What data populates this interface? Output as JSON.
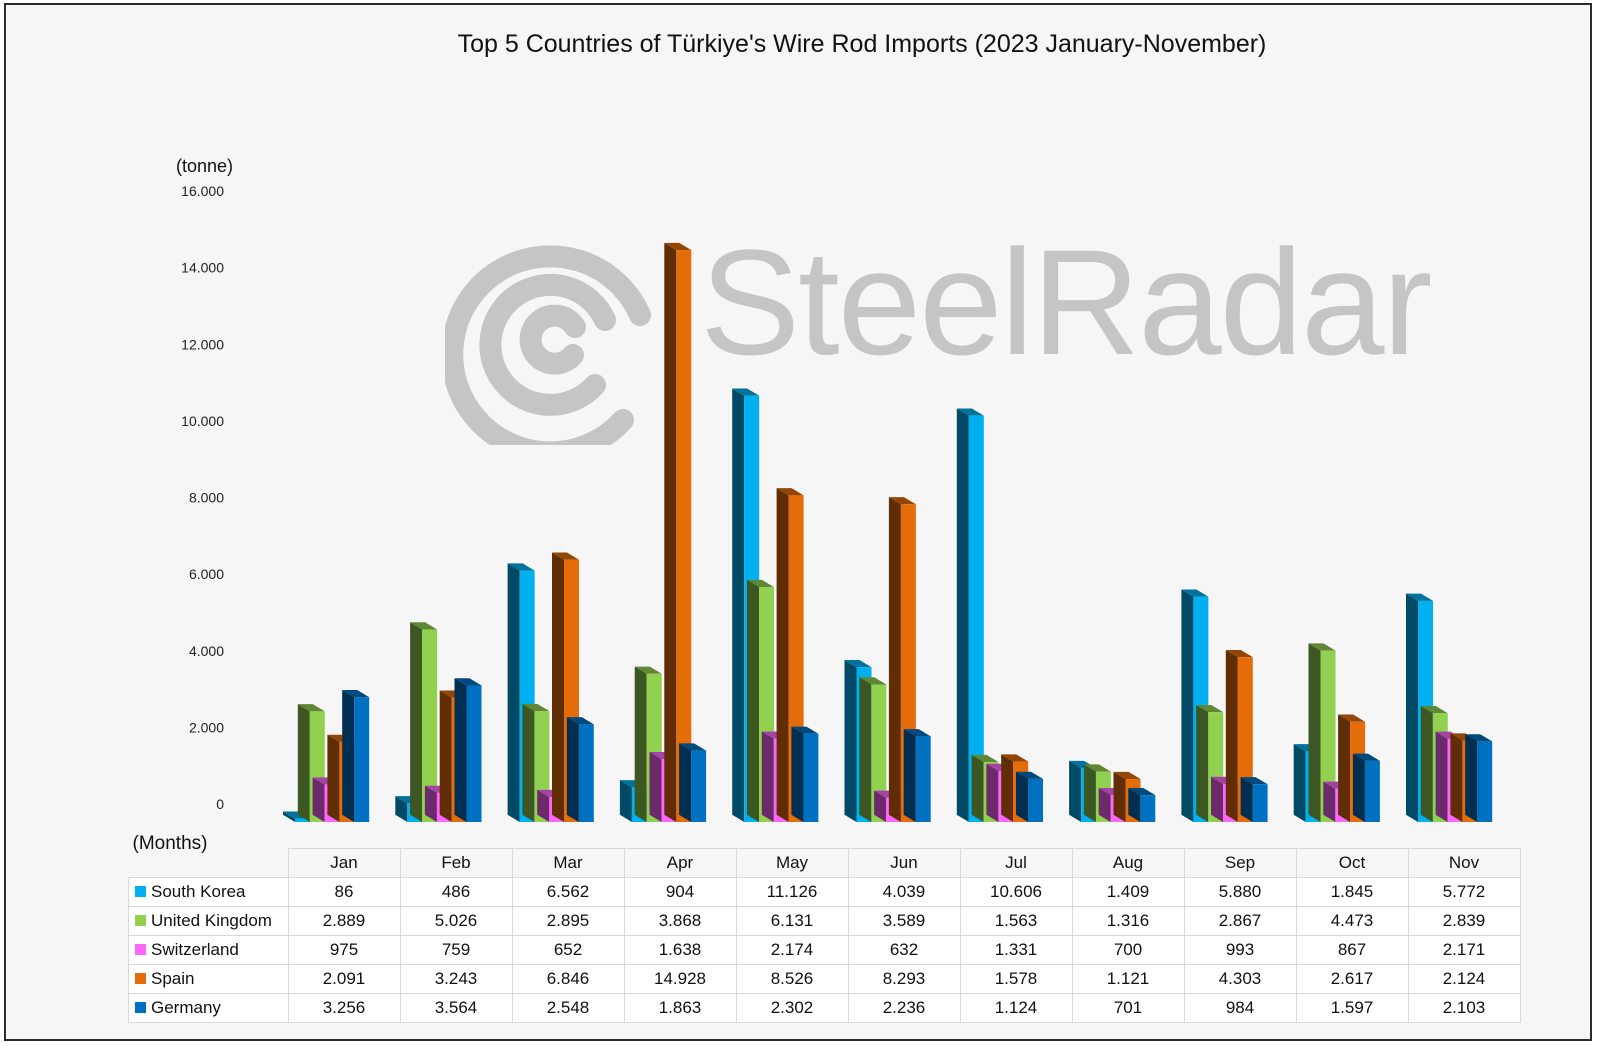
{
  "chart_data": {
    "type": "bar",
    "title": "Top 5 Countries of Türkiye's Wire Rod Imports (2023 January-November)",
    "ylabel": "(tonne)",
    "table_header": "(Months)",
    "ylim": [
      0,
      16000
    ],
    "yticks": [
      0,
      2000,
      4000,
      6000,
      8000,
      10000,
      12000,
      14000,
      16000
    ],
    "ytick_labels": [
      "0",
      "2.000",
      "4.000",
      "6.000",
      "8.000",
      "10.000",
      "12.000",
      "14.000",
      "16.000"
    ],
    "grid": false,
    "categories": [
      "Jan",
      "Feb",
      "Mar",
      "Apr",
      "May",
      "Jun",
      "Jul",
      "Aug",
      "Sep",
      "Oct",
      "Nov"
    ],
    "series": [
      {
        "name": "South Korea",
        "color": "#00b0f0",
        "values": [
          86,
          486,
          6562,
          904,
          11126,
          4039,
          10606,
          1409,
          5880,
          1845,
          5772
        ],
        "labels": [
          "86",
          "486",
          "6.562",
          "904",
          "11.126",
          "4.039",
          "10.606",
          "1.409",
          "5.880",
          "1.845",
          "5.772"
        ]
      },
      {
        "name": "United Kingdom",
        "color": "#92d050",
        "values": [
          2889,
          5026,
          2895,
          3868,
          6131,
          3589,
          1563,
          1316,
          2867,
          4473,
          2839
        ],
        "labels": [
          "2.889",
          "5.026",
          "2.895",
          "3.868",
          "6.131",
          "3.589",
          "1.563",
          "1.316",
          "2.867",
          "4.473",
          "2.839"
        ]
      },
      {
        "name": "Switzerland",
        "color": "#ff66ff",
        "values": [
          975,
          759,
          652,
          1638,
          2174,
          632,
          1331,
          700,
          993,
          867,
          2171
        ],
        "labels": [
          "975",
          "759",
          "652",
          "1.638",
          "2.174",
          "632",
          "1.331",
          "700",
          "993",
          "867",
          "2.171"
        ]
      },
      {
        "name": "Spain",
        "color": "#e46c0a",
        "values": [
          2091,
          3243,
          6846,
          14928,
          8526,
          8293,
          1578,
          1121,
          4303,
          2617,
          2124
        ],
        "labels": [
          "2.091",
          "3.243",
          "6.846",
          "14.928",
          "8.526",
          "8.293",
          "1.578",
          "1.121",
          "4.303",
          "2.617",
          "2.124"
        ]
      },
      {
        "name": "Germany",
        "color": "#0070c0",
        "values": [
          3256,
          3564,
          2548,
          1863,
          2302,
          2236,
          1124,
          701,
          984,
          1597,
          2103
        ],
        "labels": [
          "3.256",
          "3.564",
          "2.548",
          "1.863",
          "2.302",
          "2.236",
          "1.124",
          "701",
          "984",
          "1.597",
          "2.103"
        ]
      }
    ]
  },
  "watermark": {
    "text": "SteelRadar",
    "icon": "radar-logo-icon"
  }
}
